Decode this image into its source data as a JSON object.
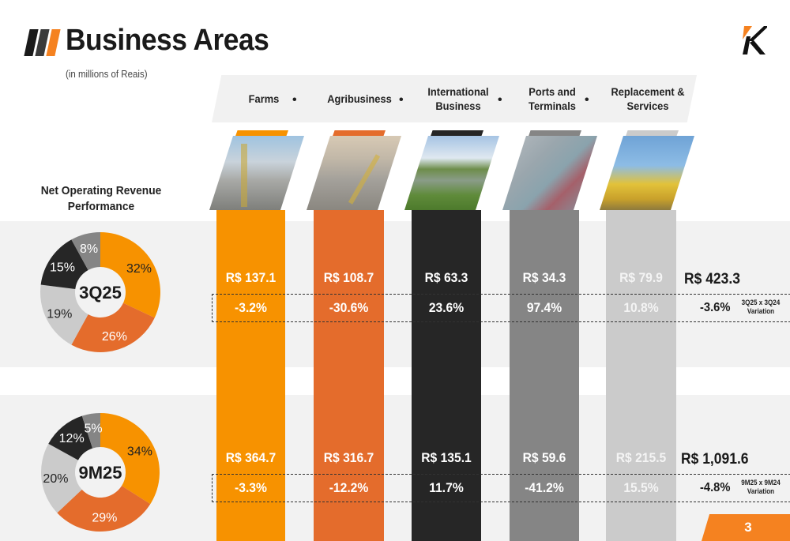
{
  "header": {
    "title": "Business Areas",
    "subtitle": "(in millions of Reais)",
    "logo": "k-logo-icon"
  },
  "colors": {
    "farms": "#f79200",
    "agribusiness": "#e46c2c",
    "international": "#262626",
    "ports": "#858585",
    "replacement": "#cbcbcb",
    "accent": "#f58220"
  },
  "segments": [
    {
      "label": "Farms",
      "image": "grain-silos-photo"
    },
    {
      "label": "Agribusiness",
      "image": "grain-silos-photo"
    },
    {
      "label": "International Business",
      "image": "farm-silos-field-photo"
    },
    {
      "label": "Ports and Terminals",
      "image": "port-ships-aerial-photo"
    },
    {
      "label": "Replacement & Services",
      "image": "workers-yellow-stairs-photo"
    }
  ],
  "section_title": "Net Operating Revenue Performance",
  "period_3q25": {
    "label": "3Q25",
    "values": [
      "R$ 137.1",
      "R$ 108.7",
      "R$ 63.3",
      "R$ 34.3",
      "R$ 79.9"
    ],
    "variations": [
      "-3.2%",
      "-30.6%",
      "23.6%",
      "97.4%",
      "10.8%"
    ],
    "total": "R$ 423.3",
    "total_variation": "-3.6%",
    "variation_caption_line1": "3Q25 x 3Q24",
    "variation_caption_line2": "Variation"
  },
  "period_9m25": {
    "label": "9M25",
    "values": [
      "R$ 364.7",
      "R$ 316.7",
      "R$ 135.1",
      "R$ 59.6",
      "R$ 215.5"
    ],
    "variations": [
      "-3.3%",
      "-12.2%",
      "11.7%",
      "-41.2%",
      "15.5%"
    ],
    "total": "R$ 1,091.6",
    "total_variation": "-4.8%",
    "variation_caption_line1": "9M25 x 9M24",
    "variation_caption_line2": "Variation"
  },
  "chart_data": [
    {
      "type": "pie",
      "title": "3Q25",
      "categories": [
        "Farms",
        "Agribusiness",
        "Replacement & Services",
        "International Business",
        "Ports and Terminals"
      ],
      "values": [
        32,
        26,
        19,
        15,
        8
      ],
      "labels": [
        "32%",
        "26%",
        "19%",
        "15%",
        "8%"
      ],
      "colors": [
        "#f79200",
        "#e46c2c",
        "#cbcbcb",
        "#262626",
        "#858585"
      ],
      "donut": true
    },
    {
      "type": "pie",
      "title": "9M25",
      "categories": [
        "Farms",
        "Agribusiness",
        "Replacement & Services",
        "International Business",
        "Ports and Terminals"
      ],
      "values": [
        34,
        29,
        20,
        12,
        5
      ],
      "labels": [
        "34%",
        "29%",
        "20%",
        "12%",
        "5%"
      ],
      "colors": [
        "#f79200",
        "#e46c2c",
        "#cbcbcb",
        "#262626",
        "#858585"
      ],
      "donut": true
    }
  ],
  "page_number": "3"
}
